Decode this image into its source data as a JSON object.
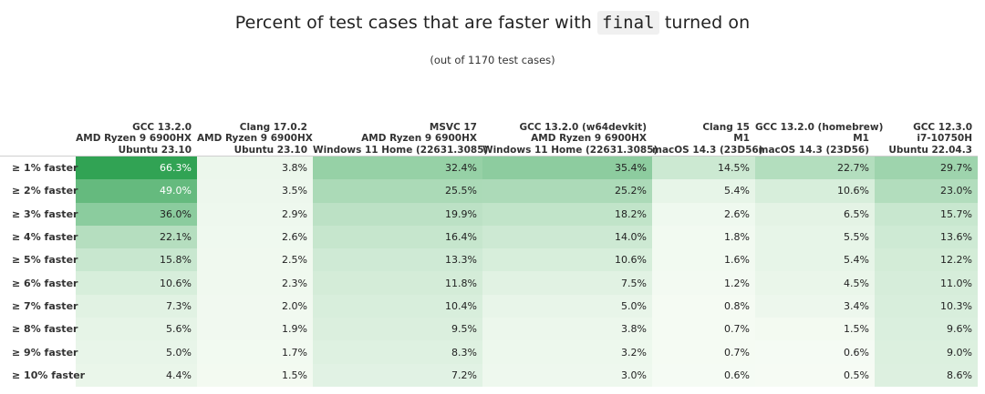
{
  "title_prefix": "Percent of test cases that are faster with",
  "title_code": "final",
  "title_suffix": "turned on",
  "subtitle": "(out of 1170 test cases)",
  "colors": {
    "low": "#f7fcf5",
    "high": "#31a354"
  },
  "chart_data": {
    "type": "heatmap",
    "title": "Percent of test cases that are faster with final turned on",
    "subtitle": "(out of 1170 test cases)",
    "columns": [
      {
        "lines": [
          "GCC 13.2.0",
          "AMD Ryzen 9 6900HX",
          "Ubuntu 23.10"
        ]
      },
      {
        "lines": [
          "Clang 17.0.2",
          "AMD Ryzen 9 6900HX",
          "Ubuntu 23.10"
        ]
      },
      {
        "lines": [
          "MSVC 17",
          "AMD Ryzen 9 6900HX",
          "Windows 11 Home (22631.3085)"
        ]
      },
      {
        "lines": [
          "GCC 13.2.0 (w64devkit)",
          "AMD Ryzen 9 6900HX",
          "Windows 11 Home (22631.3085)"
        ]
      },
      {
        "lines": [
          "Clang 15",
          "M1",
          "macOS 14.3 (23D56)"
        ]
      },
      {
        "lines": [
          "GCC 13.2.0 (homebrew)",
          "M1",
          "macOS 14.3 (23D56)"
        ]
      },
      {
        "lines": [
          "GCC 12.3.0",
          "i7-10750H",
          "Ubuntu 22.04.3"
        ]
      }
    ],
    "rows": [
      {
        "label": "≥ 1% faster",
        "values": [
          66.3,
          3.8,
          32.4,
          35.4,
          14.5,
          22.7,
          29.7
        ]
      },
      {
        "label": "≥ 2% faster",
        "values": [
          49.0,
          3.5,
          25.5,
          25.2,
          5.4,
          10.6,
          23.0
        ]
      },
      {
        "label": "≥ 3% faster",
        "values": [
          36.0,
          2.9,
          19.9,
          18.2,
          2.6,
          6.5,
          15.7
        ]
      },
      {
        "label": "≥ 4% faster",
        "values": [
          22.1,
          2.6,
          16.4,
          14.0,
          1.8,
          5.5,
          13.6
        ]
      },
      {
        "label": "≥ 5% faster",
        "values": [
          15.8,
          2.5,
          13.3,
          10.6,
          1.6,
          5.4,
          12.2
        ]
      },
      {
        "label": "≥ 6% faster",
        "values": [
          10.6,
          2.3,
          11.8,
          7.5,
          1.2,
          4.5,
          11.0
        ]
      },
      {
        "label": "≥ 7% faster",
        "values": [
          7.3,
          2.0,
          10.4,
          5.0,
          0.8,
          3.4,
          10.3
        ]
      },
      {
        "label": "≥ 8% faster",
        "values": [
          5.6,
          1.9,
          9.5,
          3.8,
          0.7,
          1.5,
          9.6
        ]
      },
      {
        "label": "≥ 9% faster",
        "values": [
          5.0,
          1.7,
          8.3,
          3.2,
          0.7,
          0.6,
          9.0
        ]
      },
      {
        "label": "≥ 10% faster",
        "values": [
          4.4,
          1.5,
          7.2,
          3.0,
          0.6,
          0.5,
          8.6
        ]
      }
    ],
    "value_suffix": "%",
    "value_range": [
      0,
      66.3
    ]
  }
}
